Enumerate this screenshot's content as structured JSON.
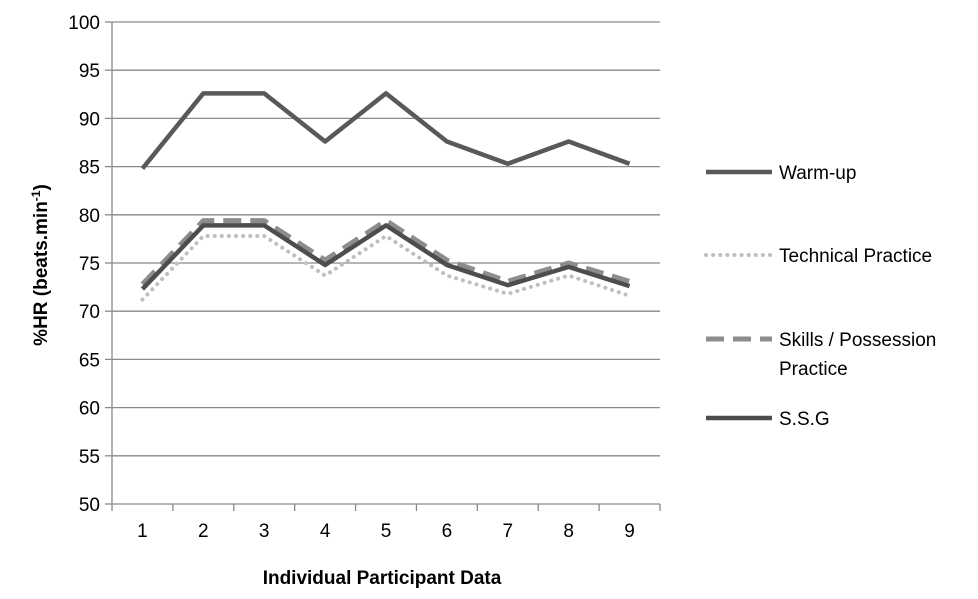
{
  "chart_data": {
    "type": "line",
    "title": "",
    "xlabel": "Individual Participant Data",
    "ylabel": "%HR (beats.min",
    "ylabel_superscript": "-1",
    "ylabel_suffix": ")",
    "categories": [
      "1",
      "2",
      "3",
      "4",
      "5",
      "6",
      "7",
      "8",
      "9"
    ],
    "ylim": [
      50,
      100
    ],
    "yticks": [
      "50",
      "55",
      "60",
      "65",
      "70",
      "75",
      "80",
      "85",
      "90",
      "95",
      "100"
    ],
    "grid": "horizontal",
    "legend_position": "right",
    "series": [
      {
        "name": "Warm-up",
        "values": [
          84.8,
          92.6,
          92.6,
          87.6,
          92.6,
          87.6,
          85.3,
          87.6,
          85.3
        ],
        "color": "#595959",
        "style": "solid"
      },
      {
        "name": "Technical Practice",
        "values": [
          71.2,
          77.8,
          77.8,
          73.7,
          77.8,
          73.7,
          71.8,
          73.7,
          71.6
        ],
        "color": "#bfbfbf",
        "style": "dotted"
      },
      {
        "name": "Skills / Possession Practice",
        "values": [
          72.8,
          79.4,
          79.4,
          75.3,
          79.4,
          75.3,
          73.1,
          75.0,
          73.1
        ],
        "color": "#8c8c8c",
        "style": "dashed"
      },
      {
        "name": "S.S.G",
        "values": [
          72.3,
          78.9,
          78.9,
          74.8,
          78.9,
          74.8,
          72.7,
          74.6,
          72.6
        ],
        "color": "#4d4d4d",
        "style": "solid"
      }
    ]
  }
}
